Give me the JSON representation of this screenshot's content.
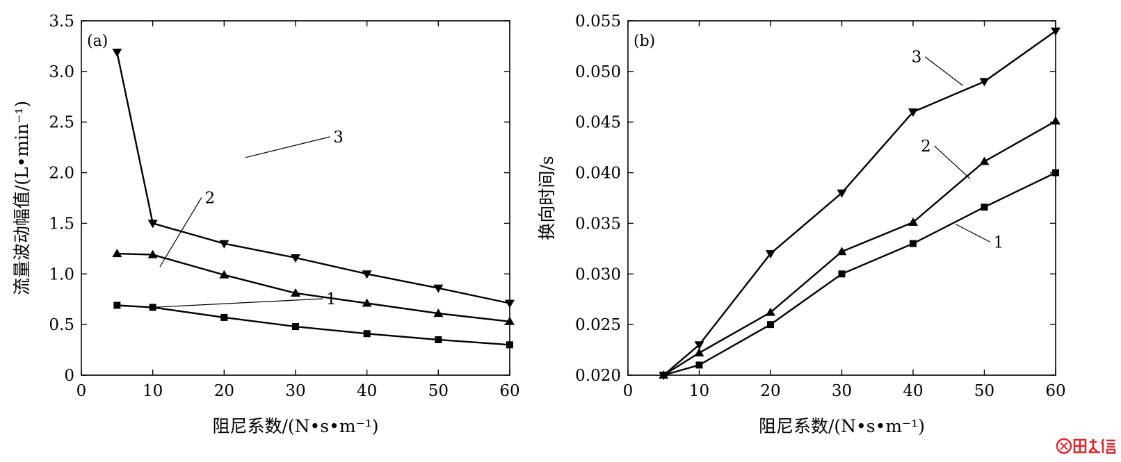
{
  "chart_data": [
    {
      "type": "line",
      "panel_label": "(a)",
      "xlabel": "阻尼系数/(N•s•m⁻¹)",
      "ylabel": "流量波动幅值/(L•min⁻¹)",
      "xlim": [
        0,
        60
      ],
      "ylim": [
        0,
        3.5
      ],
      "xticks": [
        0,
        10,
        20,
        30,
        40,
        50,
        60
      ],
      "xtick_labels": [
        "0",
        "10",
        "20",
        "30",
        "40",
        "50",
        "60"
      ],
      "yticks": [
        0,
        0.5,
        1.0,
        1.5,
        2.0,
        2.5,
        3.0,
        3.5
      ],
      "ytick_labels": [
        "0",
        "0.5",
        "1.0",
        "1.5",
        "2.0",
        "2.5",
        "3.0",
        "3.5"
      ],
      "grid": false,
      "x": [
        5,
        10,
        20,
        30,
        40,
        50,
        60
      ],
      "series": [
        {
          "name": "1",
          "marker": "square",
          "values": [
            0.69,
            0.67,
            0.57,
            0.48,
            0.41,
            0.35,
            0.3
          ],
          "label_at": [
            35,
            0.7
          ],
          "leader_to": [
            10,
            0.67
          ]
        },
        {
          "name": "2",
          "marker": "triangle-up",
          "values": [
            1.2,
            1.19,
            0.99,
            0.81,
            0.71,
            0.61,
            0.53
          ],
          "label_at": [
            18,
            1.7
          ],
          "leader_to": [
            11,
            1.07
          ]
        },
        {
          "name": "3",
          "marker": "triangle-down",
          "values": [
            3.19,
            1.5,
            1.3,
            1.16,
            1.0,
            0.86,
            0.71
          ],
          "label_at": [
            36,
            2.3
          ],
          "leader_to": [
            23,
            2.15
          ]
        }
      ]
    },
    {
      "type": "line",
      "panel_label": "(b)",
      "xlabel": "阻尼系数/(N•s•m⁻¹)",
      "ylabel": "换向时间/s",
      "xlim": [
        0,
        60
      ],
      "ylim": [
        0.02,
        0.055
      ],
      "xticks": [
        0,
        10,
        20,
        30,
        40,
        50,
        60
      ],
      "xtick_labels": [
        "0",
        "10",
        "20",
        "30",
        "40",
        "50",
        "60"
      ],
      "yticks": [
        0.02,
        0.025,
        0.03,
        0.035,
        0.04,
        0.045,
        0.05,
        0.055
      ],
      "ytick_labels": [
        "0.020",
        "0.025",
        "0.030",
        "0.035",
        "0.040",
        "0.045",
        "0.050",
        "0.055"
      ],
      "grid": false,
      "x": [
        5,
        10,
        20,
        30,
        40,
        50,
        60
      ],
      "series": [
        {
          "name": "1",
          "marker": "square",
          "values": [
            0.02,
            0.021,
            0.025,
            0.03,
            0.033,
            0.0366,
            0.04
          ],
          "label_at": [
            52,
            0.0326
          ],
          "leader_to": [
            46,
            0.0349
          ]
        },
        {
          "name": "2",
          "marker": "triangle-up",
          "values": [
            0.02,
            0.0222,
            0.0262,
            0.0322,
            0.0351,
            0.0411,
            0.0451
          ],
          "label_at": [
            41.8,
            0.0421
          ],
          "leader_to": [
            48,
            0.0394
          ]
        },
        {
          "name": "3",
          "marker": "triangle-down",
          "values": [
            0.02,
            0.023,
            0.032,
            0.038,
            0.046,
            0.049,
            0.054
          ],
          "label_at": [
            40.5,
            0.0509
          ],
          "leader_to": [
            47,
            0.0486
          ]
        }
      ]
    }
  ],
  "watermark": {
    "text": "鼎达信",
    "color": "#d9262f"
  }
}
